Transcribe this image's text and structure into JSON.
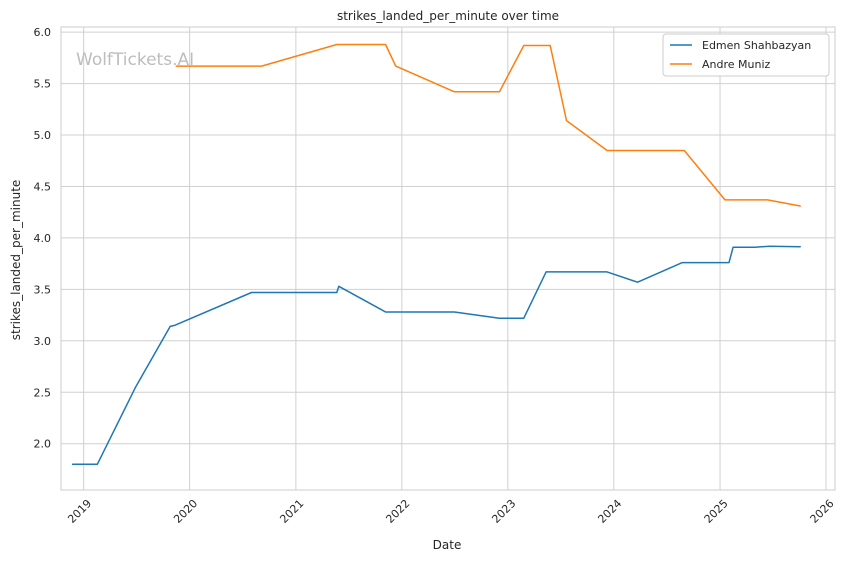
{
  "watermark": "WolfTickets.AI",
  "chart_data": {
    "type": "line",
    "title": "strikes_landed_per_minute over time",
    "xlabel": "Date",
    "ylabel": "strikes_landed_per_minute",
    "x_ticks": [
      "2019",
      "2020",
      "2021",
      "2022",
      "2023",
      "2024",
      "2025",
      "2026"
    ],
    "y_ticks": [
      "2.0",
      "2.5",
      "3.0",
      "3.5",
      "4.0",
      "4.5",
      "5.0",
      "5.5",
      "6.0"
    ],
    "xlim": [
      "2018-10-15",
      "2026-02-01"
    ],
    "ylim": [
      1.55,
      6.05
    ],
    "grid": true,
    "legend_position": "top-right",
    "series": [
      {
        "name": "Edmen Shahbazyan",
        "color": "#1f77b4",
        "points": [
          {
            "x": "2018-11-24",
            "y": 1.8
          },
          {
            "x": "2019-02-17",
            "y": 1.8
          },
          {
            "x": "2019-06-29",
            "y": 2.55
          },
          {
            "x": "2019-10-26",
            "y": 3.14
          },
          {
            "x": "2019-11-10",
            "y": 3.15
          },
          {
            "x": "2020-08-01",
            "y": 3.47
          },
          {
            "x": "2021-05-22",
            "y": 3.47
          },
          {
            "x": "2021-05-29",
            "y": 3.53
          },
          {
            "x": "2021-11-06",
            "y": 3.28
          },
          {
            "x": "2022-07-01",
            "y": 3.28
          },
          {
            "x": "2022-12-03",
            "y": 3.22
          },
          {
            "x": "2023-02-25",
            "y": 3.22
          },
          {
            "x": "2023-05-13",
            "y": 3.67
          },
          {
            "x": "2023-12-09",
            "y": 3.67
          },
          {
            "x": "2024-03-23",
            "y": 3.57
          },
          {
            "x": "2024-08-24",
            "y": 3.76
          },
          {
            "x": "2025-02-01",
            "y": 3.76
          },
          {
            "x": "2025-02-15",
            "y": 3.91
          },
          {
            "x": "2025-05-01",
            "y": 3.91
          },
          {
            "x": "2025-06-21",
            "y": 3.92
          },
          {
            "x": "2025-10-04",
            "y": 3.915
          }
        ]
      },
      {
        "name": "Andre Muniz",
        "color": "#ff7f0e",
        "points": [
          {
            "x": "2019-11-16",
            "y": 5.67
          },
          {
            "x": "2020-09-05",
            "y": 5.67
          },
          {
            "x": "2021-05-22",
            "y": 5.88
          },
          {
            "x": "2021-11-06",
            "y": 5.88
          },
          {
            "x": "2021-12-11",
            "y": 5.67
          },
          {
            "x": "2022-07-01",
            "y": 5.42
          },
          {
            "x": "2022-12-03",
            "y": 5.42
          },
          {
            "x": "2023-02-25",
            "y": 5.87
          },
          {
            "x": "2023-05-27",
            "y": 5.87
          },
          {
            "x": "2023-07-22",
            "y": 5.14
          },
          {
            "x": "2023-12-09",
            "y": 4.85
          },
          {
            "x": "2024-08-31",
            "y": 4.85
          },
          {
            "x": "2025-01-18",
            "y": 4.37
          },
          {
            "x": "2025-06-14",
            "y": 4.37
          },
          {
            "x": "2025-10-04",
            "y": 4.31
          }
        ]
      }
    ]
  }
}
